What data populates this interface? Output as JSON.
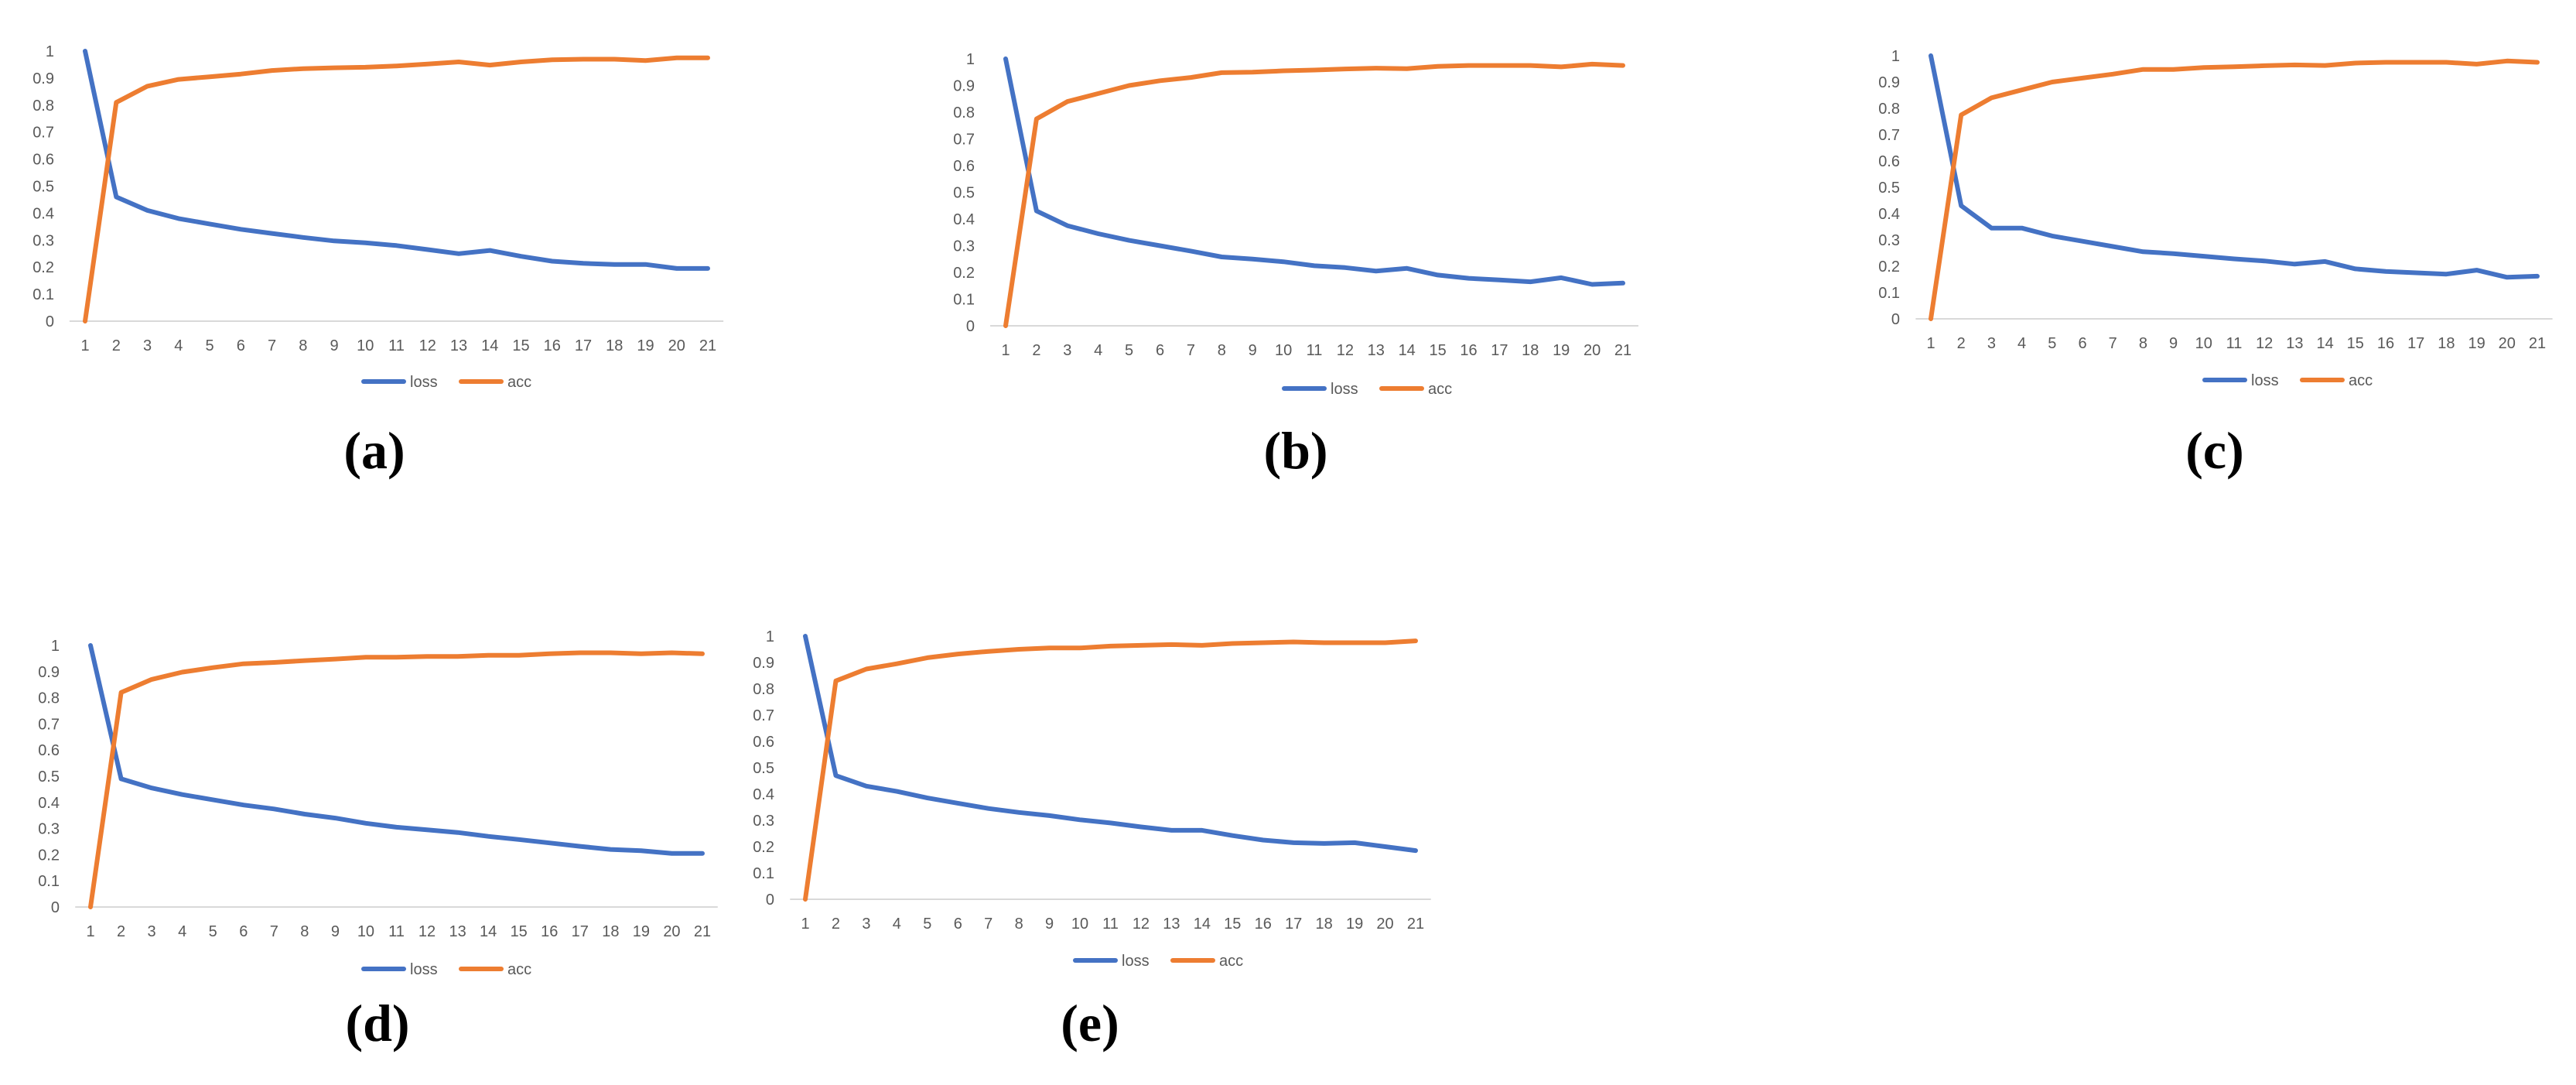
{
  "chart_data": [
    {
      "type": "line",
      "panel_label": "(a)",
      "categories": [
        1,
        2,
        3,
        4,
        5,
        6,
        7,
        8,
        9,
        10,
        11,
        12,
        13,
        14,
        15,
        16,
        17,
        18,
        19,
        20,
        21
      ],
      "ylim": [
        0,
        1
      ],
      "yticks": [
        0,
        0.1,
        0.2,
        0.3,
        0.4,
        0.5,
        0.6,
        0.7,
        0.8,
        0.9,
        1
      ],
      "grid": false,
      "legend_position": "bottom",
      "series": [
        {
          "name": "loss",
          "color": "#4472c4",
          "values": [
            1.0,
            0.46,
            0.41,
            0.38,
            0.36,
            0.34,
            0.325,
            0.31,
            0.297,
            0.29,
            0.28,
            0.265,
            0.25,
            0.262,
            0.24,
            0.222,
            0.214,
            0.21,
            0.21,
            0.195,
            0.195
          ]
        },
        {
          "name": "acc",
          "color": "#ed7d31",
          "values": [
            0.0,
            0.81,
            0.87,
            0.895,
            0.905,
            0.915,
            0.928,
            0.935,
            0.938,
            0.94,
            0.945,
            0.952,
            0.96,
            0.948,
            0.96,
            0.968,
            0.97,
            0.97,
            0.965,
            0.975,
            0.975
          ]
        }
      ]
    },
    {
      "type": "line",
      "panel_label": "(b)",
      "categories": [
        1,
        2,
        3,
        4,
        5,
        6,
        7,
        8,
        9,
        10,
        11,
        12,
        13,
        14,
        15,
        16,
        17,
        18,
        19,
        20,
        21
      ],
      "ylim": [
        0,
        1
      ],
      "yticks": [
        0,
        0.1,
        0.2,
        0.3,
        0.4,
        0.5,
        0.6,
        0.7,
        0.8,
        0.9,
        1
      ],
      "grid": false,
      "legend_position": "bottom",
      "series": [
        {
          "name": "loss",
          "color": "#4472c4",
          "values": [
            1.0,
            0.43,
            0.375,
            0.345,
            0.32,
            0.3,
            0.28,
            0.258,
            0.25,
            0.24,
            0.225,
            0.218,
            0.205,
            0.215,
            0.19,
            0.178,
            0.172,
            0.165,
            0.18,
            0.155,
            0.16
          ]
        },
        {
          "name": "acc",
          "color": "#ed7d31",
          "values": [
            0.0,
            0.775,
            0.84,
            0.87,
            0.9,
            0.918,
            0.93,
            0.948,
            0.95,
            0.955,
            0.958,
            0.962,
            0.965,
            0.963,
            0.972,
            0.975,
            0.975,
            0.975,
            0.97,
            0.98,
            0.975
          ]
        }
      ]
    },
    {
      "type": "line",
      "panel_label": "(c)",
      "categories": [
        1,
        2,
        3,
        4,
        5,
        6,
        7,
        8,
        9,
        10,
        11,
        12,
        13,
        14,
        15,
        16,
        17,
        18,
        19,
        20,
        21
      ],
      "ylim": [
        0,
        1
      ],
      "yticks": [
        0,
        0.1,
        0.2,
        0.3,
        0.4,
        0.5,
        0.6,
        0.7,
        0.8,
        0.9,
        1
      ],
      "grid": false,
      "legend_position": "bottom",
      "series": [
        {
          "name": "loss",
          "color": "#4472c4",
          "values": [
            1.0,
            0.43,
            0.345,
            0.345,
            0.315,
            0.295,
            0.275,
            0.255,
            0.248,
            0.238,
            0.228,
            0.22,
            0.208,
            0.218,
            0.19,
            0.18,
            0.175,
            0.17,
            0.185,
            0.158,
            0.162
          ]
        },
        {
          "name": "acc",
          "color": "#ed7d31",
          "values": [
            0.0,
            0.775,
            0.84,
            0.87,
            0.9,
            0.915,
            0.93,
            0.948,
            0.948,
            0.955,
            0.958,
            0.962,
            0.965,
            0.963,
            0.972,
            0.975,
            0.975,
            0.975,
            0.968,
            0.98,
            0.975
          ]
        }
      ]
    },
    {
      "type": "line",
      "panel_label": "(d)",
      "categories": [
        1,
        2,
        3,
        4,
        5,
        6,
        7,
        8,
        9,
        10,
        11,
        12,
        13,
        14,
        15,
        16,
        17,
        18,
        19,
        20,
        21
      ],
      "ylim": [
        0,
        1
      ],
      "yticks": [
        0,
        0.1,
        0.2,
        0.3,
        0.4,
        0.5,
        0.6,
        0.7,
        0.8,
        0.9,
        1
      ],
      "grid": false,
      "legend_position": "bottom",
      "series": [
        {
          "name": "loss",
          "color": "#4472c4",
          "values": [
            1.0,
            0.49,
            0.455,
            0.43,
            0.41,
            0.39,
            0.375,
            0.355,
            0.34,
            0.32,
            0.305,
            0.295,
            0.285,
            0.27,
            0.258,
            0.245,
            0.232,
            0.22,
            0.215,
            0.205,
            0.205
          ]
        },
        {
          "name": "acc",
          "color": "#ed7d31",
          "values": [
            0.0,
            0.82,
            0.87,
            0.898,
            0.915,
            0.93,
            0.935,
            0.942,
            0.948,
            0.955,
            0.955,
            0.958,
            0.958,
            0.962,
            0.962,
            0.968,
            0.972,
            0.972,
            0.968,
            0.972,
            0.968
          ]
        }
      ]
    },
    {
      "type": "line",
      "panel_label": "(e)",
      "categories": [
        1,
        2,
        3,
        4,
        5,
        6,
        7,
        8,
        9,
        10,
        11,
        12,
        13,
        14,
        15,
        16,
        17,
        18,
        19,
        20,
        21
      ],
      "ylim": [
        0,
        1
      ],
      "yticks": [
        0,
        0.1,
        0.2,
        0.3,
        0.4,
        0.5,
        0.6,
        0.7,
        0.8,
        0.9,
        1
      ],
      "grid": false,
      "legend_position": "bottom",
      "series": [
        {
          "name": "loss",
          "color": "#4472c4",
          "values": [
            1.0,
            0.47,
            0.43,
            0.41,
            0.385,
            0.365,
            0.345,
            0.33,
            0.318,
            0.302,
            0.29,
            0.275,
            0.262,
            0.262,
            0.242,
            0.225,
            0.215,
            0.212,
            0.215,
            0.2,
            0.185
          ]
        },
        {
          "name": "acc",
          "color": "#ed7d31",
          "values": [
            0.0,
            0.83,
            0.875,
            0.895,
            0.918,
            0.932,
            0.942,
            0.95,
            0.955,
            0.955,
            0.962,
            0.965,
            0.968,
            0.965,
            0.972,
            0.975,
            0.978,
            0.975,
            0.975,
            0.975,
            0.982
          ]
        }
      ]
    }
  ]
}
